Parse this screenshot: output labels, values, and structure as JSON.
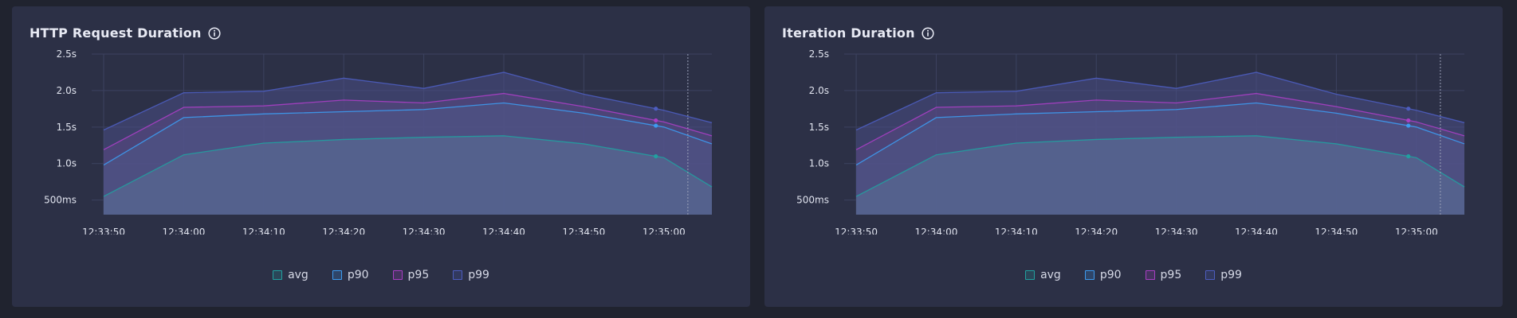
{
  "panels": [
    {
      "title": "HTTP Request Duration"
    },
    {
      "title": "Iteration Duration"
    }
  ],
  "icons": {
    "info": "info-circle-icon"
  },
  "colors": {
    "avg": "#21a0a0",
    "p90": "#3d9bf0",
    "p95": "#a93fc4",
    "p99": "#4d5dbf"
  },
  "legend": [
    {
      "key": "avg",
      "label": "avg"
    },
    {
      "key": "p90",
      "label": "p90"
    },
    {
      "key": "p95",
      "label": "p95"
    },
    {
      "key": "p99",
      "label": "p99"
    }
  ],
  "chart_data": [
    {
      "type": "area",
      "title": "HTTP Request Duration",
      "x": [
        "12:33:50",
        "12:34:00",
        "12:34:10",
        "12:34:20",
        "12:34:30",
        "12:34:40",
        "12:34:50",
        "12:35:00",
        "12:35:06"
      ],
      "x_tick_labels": [
        "12:33:50",
        "12:34:00",
        "12:34:10",
        "12:34:20",
        "12:34:30",
        "12:34:40",
        "12:34:50",
        "12:35:00"
      ],
      "y_tick_labels": [
        "500ms",
        "1.0s",
        "1.5s",
        "2.0s",
        "2.5s"
      ],
      "y_unit": "s",
      "ylim": [
        0.3,
        2.5
      ],
      "grid": true,
      "legend_position": "bottom-center",
      "cursor_time": "12:35:03",
      "marker_time": "12:34:59",
      "series": [
        {
          "name": "avg",
          "values": [
            0.55,
            1.12,
            1.28,
            1.33,
            1.36,
            1.38,
            1.27,
            1.08,
            0.68
          ]
        },
        {
          "name": "p90",
          "values": [
            0.98,
            1.63,
            1.68,
            1.71,
            1.74,
            1.83,
            1.69,
            1.5,
            1.27
          ]
        },
        {
          "name": "p95",
          "values": [
            1.19,
            1.77,
            1.79,
            1.87,
            1.83,
            1.96,
            1.78,
            1.57,
            1.38
          ]
        },
        {
          "name": "p99",
          "values": [
            1.46,
            1.97,
            1.99,
            2.17,
            2.03,
            2.25,
            1.95,
            1.73,
            1.56
          ]
        }
      ]
    },
    {
      "type": "area",
      "title": "Iteration Duration",
      "x": [
        "12:33:50",
        "12:34:00",
        "12:34:10",
        "12:34:20",
        "12:34:30",
        "12:34:40",
        "12:34:50",
        "12:35:00",
        "12:35:06"
      ],
      "x_tick_labels": [
        "12:33:50",
        "12:34:00",
        "12:34:10",
        "12:34:20",
        "12:34:30",
        "12:34:40",
        "12:34:50",
        "12:35:00"
      ],
      "y_tick_labels": [
        "500ms",
        "1.0s",
        "1.5s",
        "2.0s",
        "2.5s"
      ],
      "y_unit": "s",
      "ylim": [
        0.3,
        2.5
      ],
      "grid": true,
      "legend_position": "bottom-center",
      "cursor_time": "12:35:03",
      "marker_time": "12:34:59",
      "series": [
        {
          "name": "avg",
          "values": [
            0.55,
            1.12,
            1.28,
            1.33,
            1.36,
            1.38,
            1.27,
            1.08,
            0.68
          ]
        },
        {
          "name": "p90",
          "values": [
            0.98,
            1.63,
            1.68,
            1.71,
            1.74,
            1.83,
            1.69,
            1.5,
            1.27
          ]
        },
        {
          "name": "p95",
          "values": [
            1.19,
            1.77,
            1.79,
            1.87,
            1.83,
            1.96,
            1.78,
            1.57,
            1.38
          ]
        },
        {
          "name": "p99",
          "values": [
            1.46,
            1.97,
            1.99,
            2.17,
            2.03,
            2.25,
            1.95,
            1.73,
            1.56
          ]
        }
      ]
    }
  ]
}
